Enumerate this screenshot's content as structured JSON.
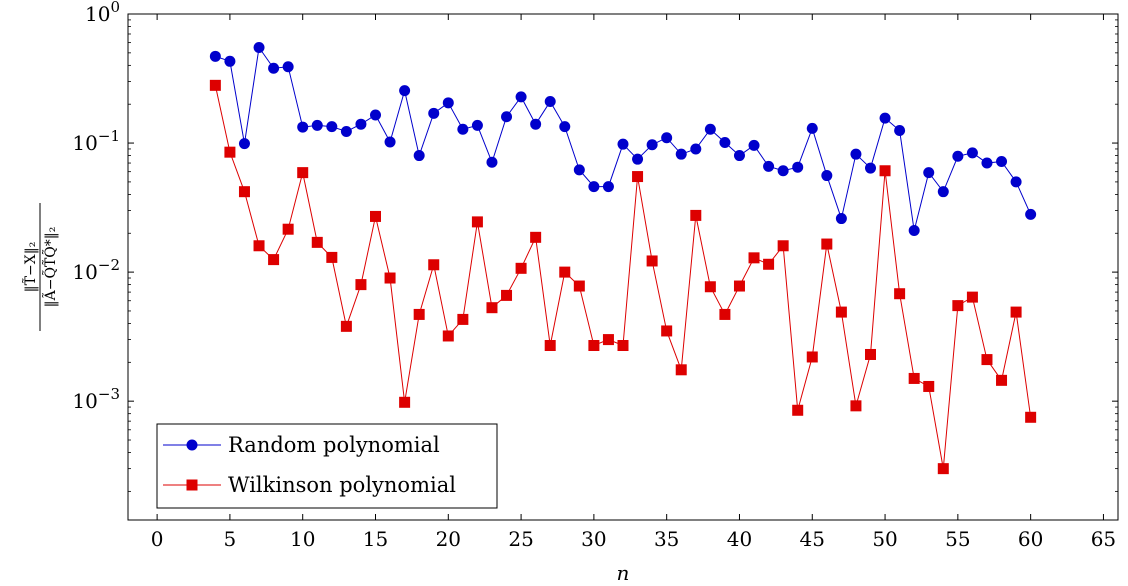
{
  "chart_data": {
    "type": "line",
    "xlabel": "n",
    "ylabel": "‖T̃ − X‖₂ / ‖Ã − Q̃T̃Q̃*‖₂",
    "ylabel_num": "‖T̃−X‖₂",
    "ylabel_den": "‖Ã−Q̃T̃Q̃*‖₂",
    "xlim": [
      -2,
      66
    ],
    "ylim": [
      0.00012,
      1.0
    ],
    "yscale": "log",
    "x_ticks": [
      0,
      5,
      10,
      15,
      20,
      25,
      30,
      35,
      40,
      45,
      50,
      55,
      60,
      65
    ],
    "y_ticks": [
      {
        "value": 1,
        "base": "10",
        "exp": "0"
      },
      {
        "value": 0.1,
        "base": "10",
        "exp": "−1"
      },
      {
        "value": 0.01,
        "base": "10",
        "exp": "−2"
      },
      {
        "value": 0.001,
        "base": "10",
        "exp": "−3"
      }
    ],
    "legend_position": "bottom-left",
    "series": [
      {
        "name": "Random polynomial",
        "color": "#0000cc",
        "marker": "circle",
        "x": [
          4,
          5,
          6,
          7,
          8,
          9,
          10,
          11,
          12,
          13,
          14,
          15,
          16,
          17,
          18,
          19,
          20,
          21,
          22,
          23,
          24,
          25,
          26,
          27,
          28,
          29,
          30,
          31,
          32,
          33,
          34,
          35,
          36,
          37,
          38,
          39,
          40,
          41,
          42,
          43,
          44,
          45,
          46,
          47,
          48,
          49,
          50,
          51,
          52,
          53,
          54,
          55,
          56,
          57,
          58,
          59,
          60
        ],
        "values": [
          0.47,
          0.43,
          0.099,
          0.55,
          0.38,
          0.39,
          0.133,
          0.137,
          0.134,
          0.123,
          0.14,
          0.165,
          0.102,
          0.255,
          0.08,
          0.17,
          0.205,
          0.128,
          0.137,
          0.071,
          0.16,
          0.228,
          0.14,
          0.21,
          0.134,
          0.062,
          0.046,
          0.046,
          0.098,
          0.075,
          0.097,
          0.11,
          0.082,
          0.09,
          0.128,
          0.101,
          0.08,
          0.096,
          0.066,
          0.061,
          0.065,
          0.13,
          0.056,
          0.026,
          0.082,
          0.064,
          0.156,
          0.125,
          0.021,
          0.059,
          0.042,
          0.079,
          0.084,
          0.07,
          0.072,
          0.05,
          0.028
        ]
      },
      {
        "name": "Wilkinson polynomial",
        "color": "#dd0000",
        "marker": "square",
        "x": [
          4,
          5,
          6,
          7,
          8,
          9,
          10,
          11,
          12,
          13,
          14,
          15,
          16,
          17,
          18,
          19,
          20,
          21,
          22,
          23,
          24,
          25,
          26,
          27,
          28,
          29,
          30,
          31,
          32,
          33,
          34,
          35,
          36,
          37,
          38,
          39,
          40,
          41,
          42,
          43,
          44,
          45,
          46,
          47,
          48,
          49,
          50,
          51,
          52,
          53,
          54,
          55,
          56,
          57,
          58,
          59,
          60
        ],
        "values": [
          0.28,
          0.085,
          0.042,
          0.016,
          0.0125,
          0.0215,
          0.059,
          0.017,
          0.013,
          0.0038,
          0.008,
          0.027,
          0.009,
          0.00098,
          0.0047,
          0.0114,
          0.0032,
          0.0043,
          0.0245,
          0.0053,
          0.0066,
          0.0107,
          0.0186,
          0.0027,
          0.01,
          0.0078,
          0.0027,
          0.003,
          0.0027,
          0.055,
          0.0122,
          0.0035,
          0.00175,
          0.0275,
          0.0077,
          0.0047,
          0.0078,
          0.0129,
          0.0115,
          0.016,
          0.00085,
          0.0022,
          0.0165,
          0.0049,
          0.00092,
          0.0023,
          0.061,
          0.0068,
          0.0015,
          0.0013,
          0.0003,
          0.0055,
          0.0064,
          0.0021,
          0.00145,
          0.0049,
          0.00075
        ]
      }
    ]
  }
}
